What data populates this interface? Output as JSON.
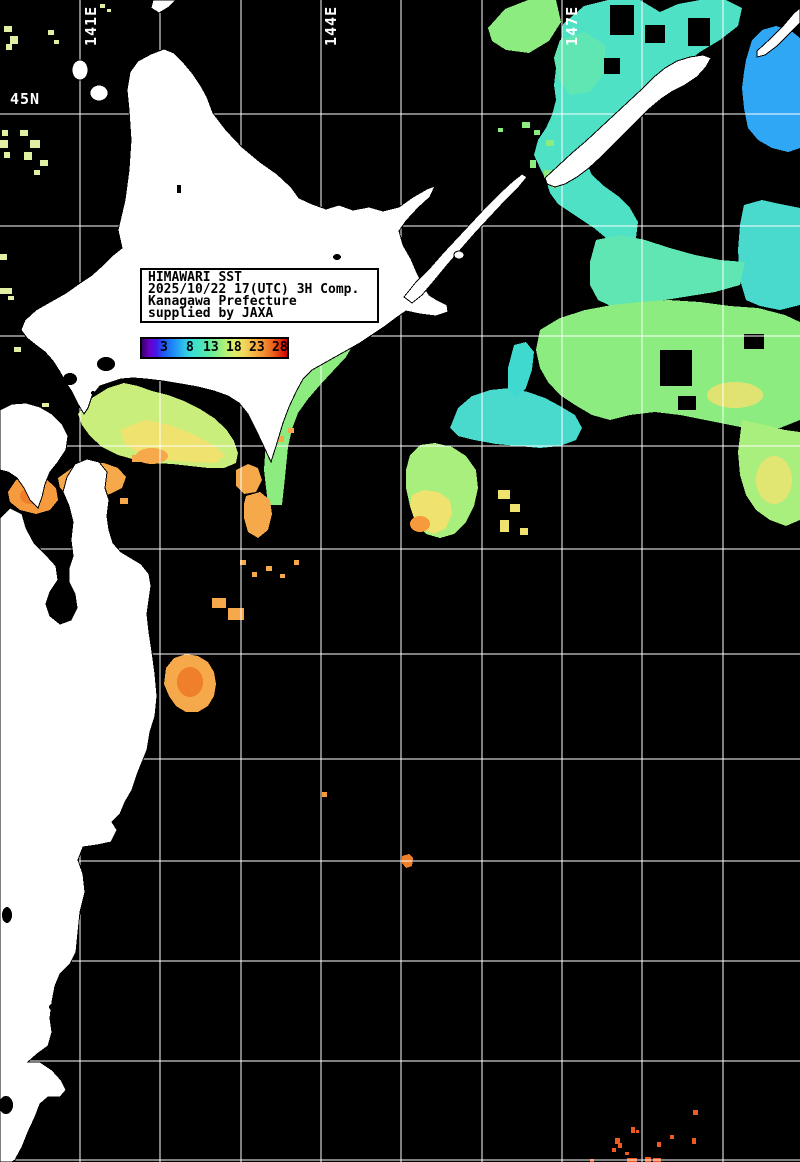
{
  "map": {
    "title_box": {
      "line1": "HIMAWARI SST",
      "line2": "2025/10/22 17(UTC) 3H Comp.",
      "line3": "Kanagawa Prefecture",
      "line4": "supplied by JAXA"
    },
    "legend": {
      "values": [
        "3",
        "8",
        "13",
        "18",
        "23",
        "28"
      ]
    },
    "grid_labels": {
      "meridians": [
        {
          "label": "141E"
        },
        {
          "label": "144E"
        },
        {
          "label": "147E"
        }
      ],
      "parallel": "45N"
    },
    "colors": {
      "ocean": "#000000",
      "land": "#ffffff",
      "grid": "#ffffff",
      "sst_cold_blue": "#2fa7f5",
      "sst_cyan": "#4ee1c6",
      "sst_green": "#8dec80",
      "sst_yellow_green": "#c9ee7b",
      "sst_yellow": "#efe26e",
      "sst_orange": "#f6a94a",
      "sst_warm_red": "#e02a08",
      "legend_scale_min_color": "#38006e",
      "legend_scale_max_color": "#cf0000"
    }
  }
}
